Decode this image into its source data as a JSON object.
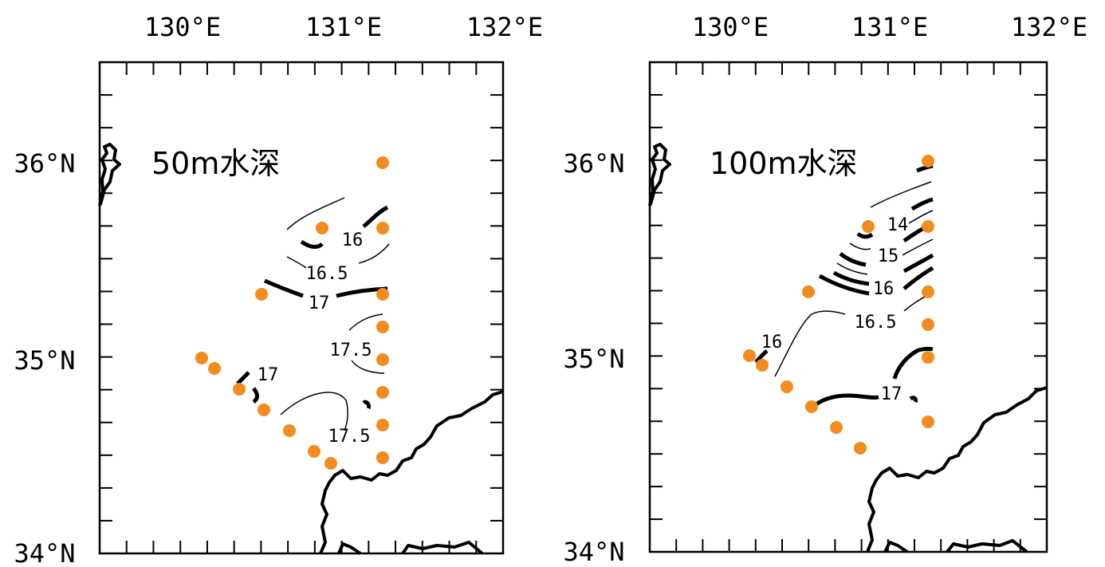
{
  "station_color": "#f28c1e",
  "panels": [
    {
      "id": "left",
      "title": "50m水深",
      "lon_labels": [
        "130°E",
        "131°E",
        "132°E"
      ],
      "lat_labels": [
        "36°N",
        "35°N",
        "34°N"
      ],
      "contour_labels": [
        "16",
        "16.5",
        "17",
        "17.5",
        "17",
        "17.5"
      ]
    },
    {
      "id": "right",
      "title": "100m水深",
      "lon_labels": [
        "130°E",
        "131°E",
        "132°E"
      ],
      "lat_labels": [
        "36°N",
        "35°N",
        "34°N"
      ],
      "contour_labels": [
        "14",
        "15",
        "16",
        "16.5",
        "16",
        "17"
      ]
    }
  ]
}
